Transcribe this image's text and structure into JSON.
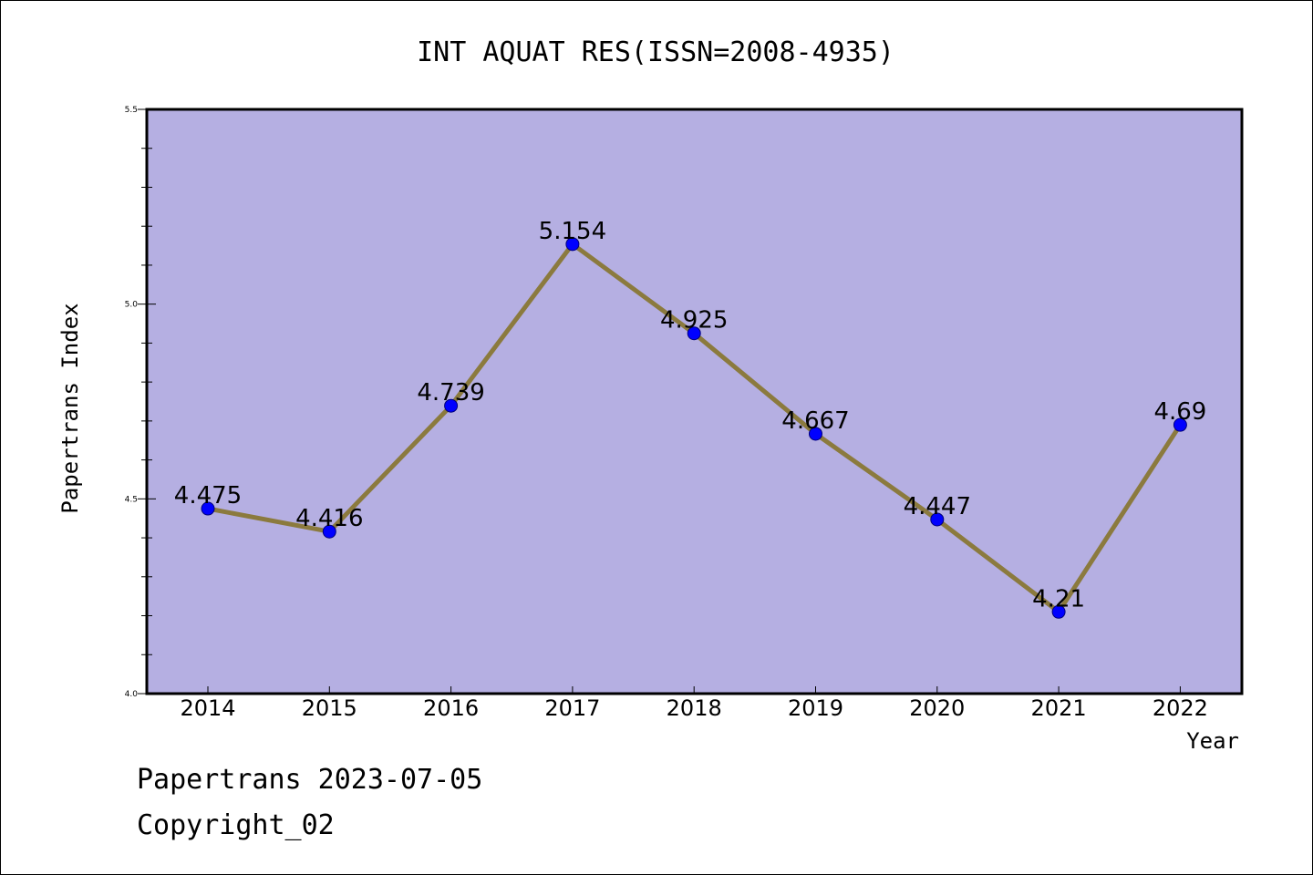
{
  "chart_data": {
    "type": "line",
    "title": "INT AQUAT RES(ISSN=2008-4935)",
    "xlabel": "Year",
    "ylabel": "Papertrans Index",
    "x": [
      "2014",
      "2015",
      "2016",
      "2017",
      "2018",
      "2019",
      "2020",
      "2021",
      "2022"
    ],
    "series": [
      {
        "values": [
          4.475,
          4.416,
          4.739,
          5.154,
          4.925,
          4.667,
          4.447,
          4.21,
          4.69
        ],
        "labels": [
          "4.475",
          "4.416",
          "4.739",
          "5.154",
          "4.925",
          "4.667",
          "4.447",
          "4.21",
          "4.69"
        ]
      }
    ],
    "ylim": [
      4.0,
      5.5
    ],
    "yticks": [
      4.0,
      4.5,
      5.0,
      5.5
    ],
    "ytick_labels": [
      "4.0",
      "4.5",
      "5.0",
      "5.5"
    ],
    "grid": false,
    "colors": {
      "plot_background": "#b5afe2",
      "line": "#8b7a3e",
      "marker": "#0000ff"
    }
  },
  "footer": {
    "line1": "Papertrans 2023-07-05",
    "line2": "Copyright_02"
  }
}
